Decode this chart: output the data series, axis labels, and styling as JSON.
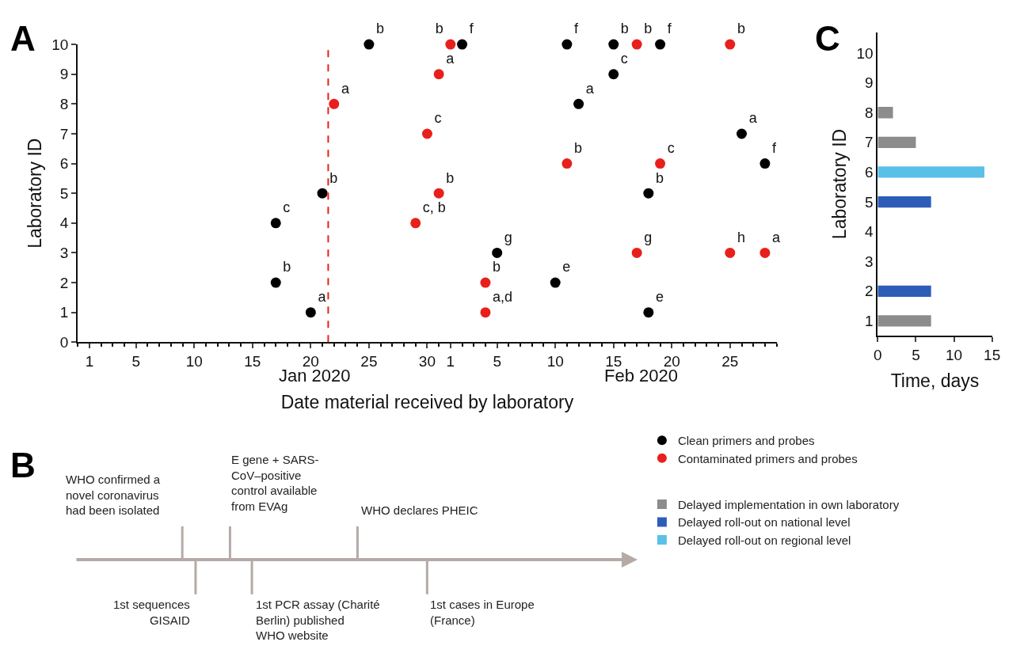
{
  "chart_data": [
    {
      "type": "scatter",
      "title": "A",
      "xlabel": "Date material received by laboratory",
      "ylabel": "Laboratory ID",
      "annotations": [
        "Jan 2020",
        "Feb 2020"
      ],
      "xlim": [
        "2019-12-31",
        "2020-02-29"
      ],
      "xticks": [
        {
          "value": "2020-01-01",
          "label": "1"
        },
        {
          "value": "2020-01-05",
          "label": "5"
        },
        {
          "value": "2020-01-10",
          "label": "10"
        },
        {
          "value": "2020-01-15",
          "label": "15"
        },
        {
          "value": "2020-01-20",
          "label": "20"
        },
        {
          "value": "2020-01-25",
          "label": "25"
        },
        {
          "value": "2020-01-30",
          "label": "30"
        },
        {
          "value": "2020-02-01",
          "label": "1"
        },
        {
          "value": "2020-02-05",
          "label": "5"
        },
        {
          "value": "2020-02-10",
          "label": "10"
        },
        {
          "value": "2020-02-15",
          "label": "15"
        },
        {
          "value": "2020-02-20",
          "label": "20"
        },
        {
          "value": "2020-02-25",
          "label": "25"
        }
      ],
      "ylim": [
        0,
        10
      ],
      "yticks": [
        0,
        1,
        2,
        3,
        4,
        5,
        6,
        7,
        8,
        9,
        10
      ],
      "marker": "circle",
      "legend": "bottom right",
      "ref_lines": [
        {
          "axis": "x",
          "value": "2020-01-21T12:00",
          "color": "#e8201c",
          "line_style": "dashed"
        }
      ],
      "series": [
        {
          "name": "Clean primers and probes",
          "color": "#000000",
          "x": [
            "2020-01-25",
            "2020-02-02",
            "2020-02-11",
            "2020-02-15",
            "2020-02-19",
            "2020-02-15",
            "2020-02-12",
            "2020-02-26",
            "2020-02-28",
            "2020-01-21",
            "2020-02-18",
            "2020-01-17",
            "2020-02-05",
            "2020-01-17",
            "2020-02-10",
            "2020-01-20",
            "2020-02-18"
          ],
          "values": [
            10,
            10,
            10,
            10,
            10,
            9,
            8,
            7,
            6,
            5,
            5,
            4,
            3,
            2,
            2,
            1,
            1
          ],
          "value_labels": [
            "b",
            "f",
            "f",
            "b",
            "f",
            "c",
            "a",
            "a",
            "f",
            "b",
            "b",
            "c",
            "g",
            "b",
            "e",
            "a",
            "e"
          ]
        },
        {
          "name": "Contaminated primers and probes",
          "color": "#e8201c",
          "x": [
            "2020-02-01",
            "2020-02-17",
            "2020-02-25",
            "2020-01-31",
            "2020-01-22",
            "2020-01-30",
            "2020-02-11",
            "2020-02-19",
            "2020-01-31",
            "2020-01-29",
            "2020-02-17",
            "2020-02-25",
            "2020-02-28",
            "2020-02-04",
            "2020-02-04"
          ],
          "values": [
            10,
            10,
            10,
            9,
            8,
            7,
            6,
            6,
            5,
            4,
            3,
            3,
            3,
            2,
            1
          ],
          "value_labels": [
            "b",
            "b",
            "b",
            "a",
            "a",
            "c",
            "b",
            "c",
            "b",
            "c, b",
            "g",
            "h",
            "a",
            "b",
            "a,d"
          ]
        }
      ]
    },
    {
      "type": "other",
      "title": "B",
      "annotations": [
        "WHO confirmed a\nnovel coronavirus\nhad been isolated",
        "E gene + SARS-\nCoV–positive\ncontrol available\nfrom EVAg",
        "WHO declares PHEIC",
        "1st sequences\nGISAID",
        "1st PCR assay (Charité\nBerlin) published\nWHO website",
        "1st cases in Europe\n(France)"
      ]
    },
    {
      "type": "bar",
      "title": "C",
      "orientation": "horizontal",
      "xlabel": "Time, days",
      "ylabel": "Laboratory ID",
      "categories": [
        "10",
        "9",
        "8",
        "7",
        "6",
        "5",
        "4",
        "3",
        "2",
        "1"
      ],
      "xlim": [
        0,
        15
      ],
      "xticks": [
        0,
        5,
        10,
        15
      ],
      "legend": "bottom",
      "series": [
        {
          "name": "Delayed implementation in own laboratory",
          "color": "#8c8c8c",
          "values": [
            null,
            null,
            2,
            5,
            null,
            null,
            null,
            null,
            null,
            7
          ]
        },
        {
          "name": "Delayed roll-out on national level",
          "color": "#2e5db8",
          "values": [
            null,
            null,
            null,
            null,
            null,
            7,
            null,
            null,
            7,
            null
          ]
        },
        {
          "name": "Delayed roll-out on regional level",
          "color": "#5bc0e8",
          "values": [
            null,
            null,
            null,
            null,
            14,
            null,
            null,
            null,
            null,
            null
          ]
        }
      ]
    }
  ]
}
